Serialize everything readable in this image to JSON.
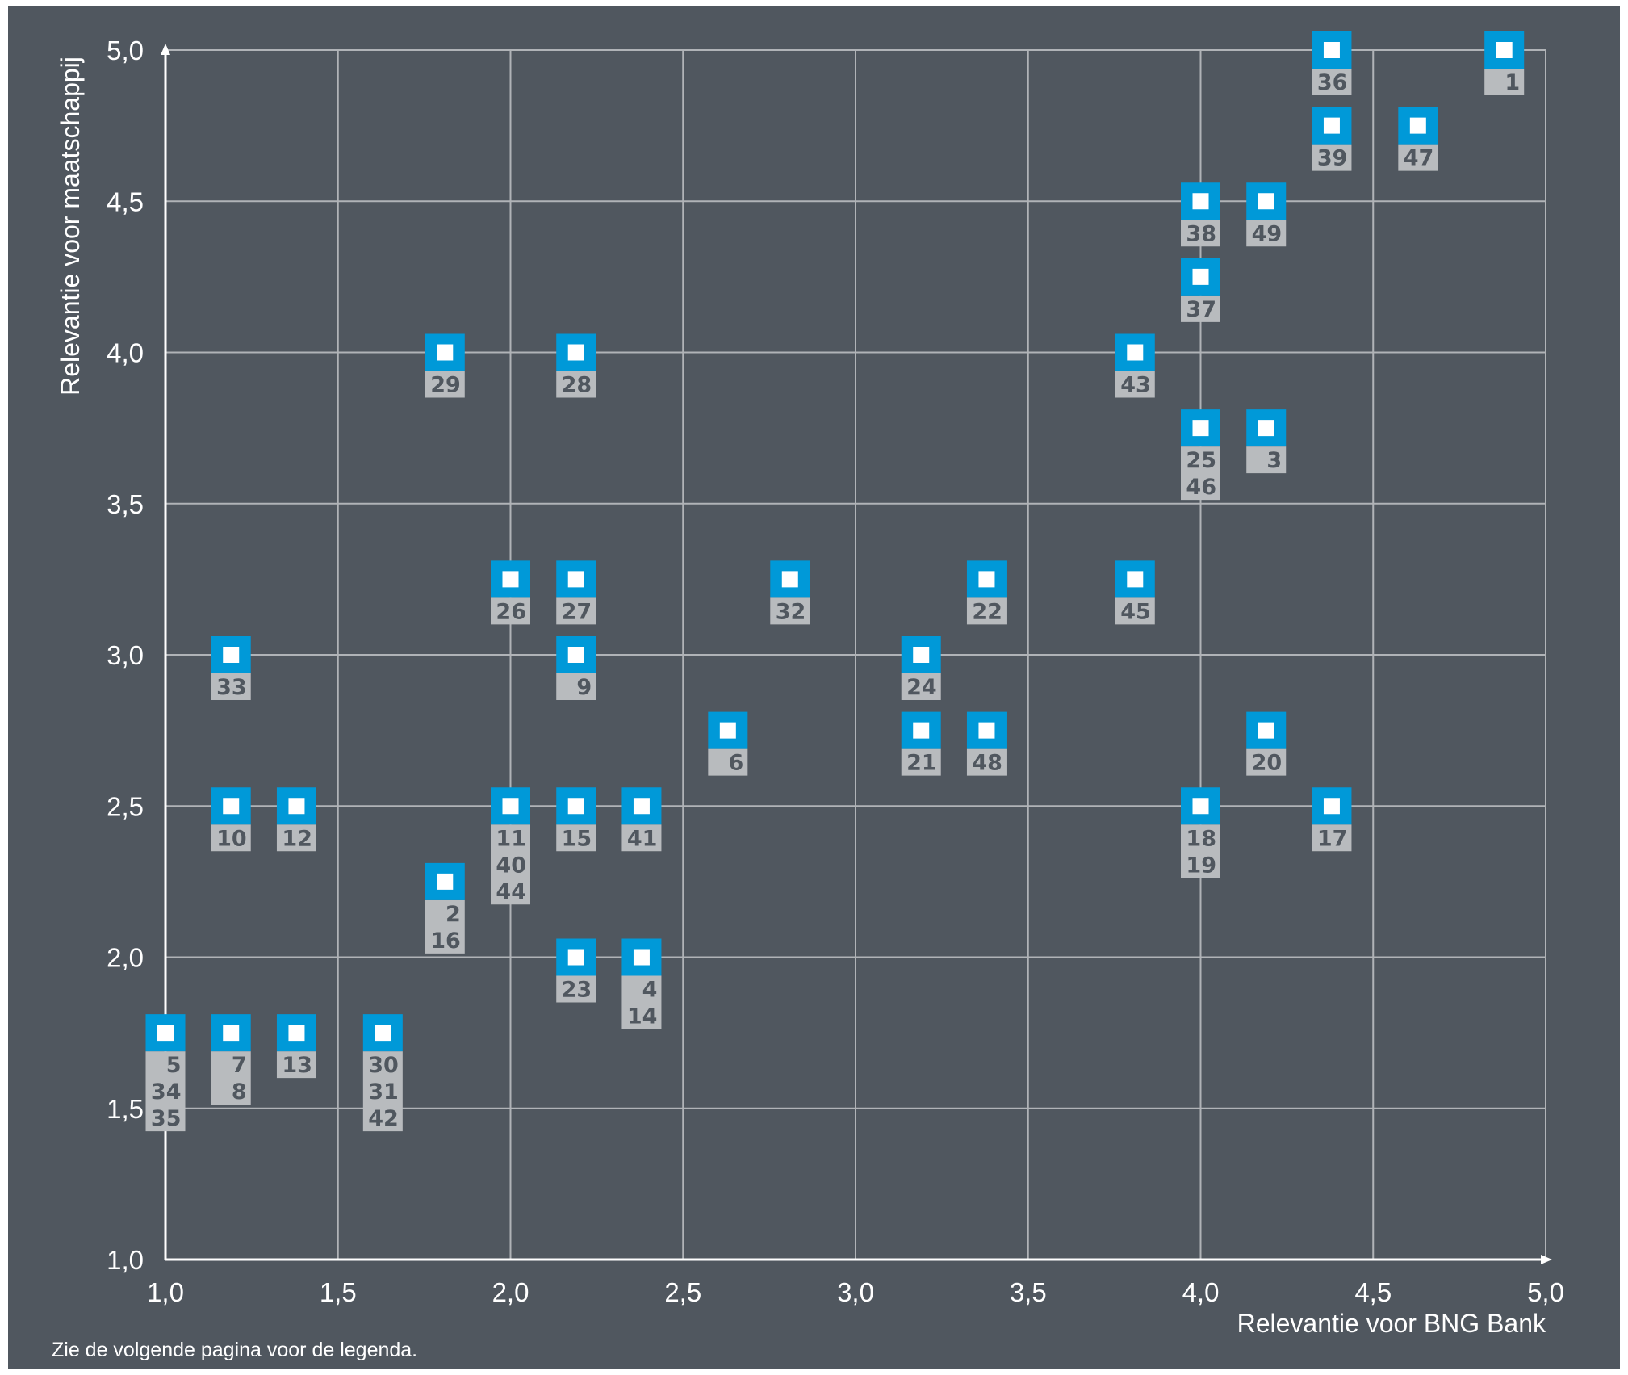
{
  "chart_data": {
    "type": "scatter",
    "title": "",
    "xlabel": "Relevantie voor BNG Bank",
    "ylabel": "Relevantie voor maatschappij",
    "xlim": [
      1.0,
      5.0
    ],
    "ylim": [
      1.0,
      5.0
    ],
    "xticks": [
      "1,0",
      "1,5",
      "2,0",
      "2,5",
      "3,0",
      "3,5",
      "4,0",
      "4,5",
      "5,0"
    ],
    "yticks": [
      "1,0",
      "1,5",
      "2,0",
      "2,5",
      "3,0",
      "3,5",
      "4,0",
      "4,5",
      "5,0"
    ],
    "grid": true,
    "marker_color": "#0099d8",
    "label_color": "#b8bbbe",
    "background_color": "#50575f",
    "points": [
      {
        "x": 4.38,
        "y": 5.0,
        "labels": [
          "36"
        ]
      },
      {
        "x": 4.88,
        "y": 5.0,
        "labels": [
          "1"
        ]
      },
      {
        "x": 4.38,
        "y": 4.75,
        "labels": [
          "39"
        ]
      },
      {
        "x": 4.63,
        "y": 4.75,
        "labels": [
          "47"
        ]
      },
      {
        "x": 4.0,
        "y": 4.5,
        "labels": [
          "38"
        ]
      },
      {
        "x": 4.19,
        "y": 4.5,
        "labels": [
          "49"
        ]
      },
      {
        "x": 4.0,
        "y": 4.25,
        "labels": [
          "37"
        ]
      },
      {
        "x": 1.81,
        "y": 4.0,
        "labels": [
          "29"
        ]
      },
      {
        "x": 2.19,
        "y": 4.0,
        "labels": [
          "28"
        ]
      },
      {
        "x": 3.81,
        "y": 4.0,
        "labels": [
          "43"
        ]
      },
      {
        "x": 4.0,
        "y": 3.75,
        "labels": [
          "25",
          "46"
        ]
      },
      {
        "x": 4.19,
        "y": 3.75,
        "labels": [
          "3"
        ]
      },
      {
        "x": 2.0,
        "y": 3.25,
        "labels": [
          "26"
        ]
      },
      {
        "x": 2.19,
        "y": 3.25,
        "labels": [
          "27"
        ]
      },
      {
        "x": 2.81,
        "y": 3.25,
        "labels": [
          "32"
        ]
      },
      {
        "x": 3.38,
        "y": 3.25,
        "labels": [
          "22"
        ]
      },
      {
        "x": 3.81,
        "y": 3.25,
        "labels": [
          "45"
        ]
      },
      {
        "x": 1.19,
        "y": 3.0,
        "labels": [
          "33"
        ]
      },
      {
        "x": 2.19,
        "y": 3.0,
        "labels": [
          "9"
        ]
      },
      {
        "x": 3.19,
        "y": 3.0,
        "labels": [
          "24"
        ]
      },
      {
        "x": 2.63,
        "y": 2.75,
        "labels": [
          "6"
        ]
      },
      {
        "x": 3.19,
        "y": 2.75,
        "labels": [
          "21"
        ]
      },
      {
        "x": 3.38,
        "y": 2.75,
        "labels": [
          "48"
        ]
      },
      {
        "x": 4.19,
        "y": 2.75,
        "labels": [
          "20"
        ]
      },
      {
        "x": 1.19,
        "y": 2.5,
        "labels": [
          "10"
        ]
      },
      {
        "x": 1.38,
        "y": 2.5,
        "labels": [
          "12"
        ]
      },
      {
        "x": 2.0,
        "y": 2.5,
        "labels": [
          "11",
          "40",
          "44"
        ]
      },
      {
        "x": 2.19,
        "y": 2.5,
        "labels": [
          "15"
        ]
      },
      {
        "x": 2.38,
        "y": 2.5,
        "labels": [
          "41"
        ]
      },
      {
        "x": 4.0,
        "y": 2.5,
        "labels": [
          "18",
          "19"
        ]
      },
      {
        "x": 4.38,
        "y": 2.5,
        "labels": [
          "17"
        ]
      },
      {
        "x": 1.81,
        "y": 2.25,
        "labels": [
          "2",
          "16"
        ]
      },
      {
        "x": 2.19,
        "y": 2.0,
        "labels": [
          "23"
        ]
      },
      {
        "x": 2.38,
        "y": 2.0,
        "labels": [
          "4",
          "14"
        ]
      },
      {
        "x": 1.0,
        "y": 1.75,
        "labels": [
          "5",
          "34",
          "35"
        ]
      },
      {
        "x": 1.19,
        "y": 1.75,
        "labels": [
          "7",
          "8"
        ]
      },
      {
        "x": 1.38,
        "y": 1.75,
        "labels": [
          "13"
        ]
      },
      {
        "x": 1.63,
        "y": 1.75,
        "labels": [
          "30",
          "31",
          "42"
        ]
      }
    ]
  },
  "footnote": "Zie de volgende pagina voor de legenda."
}
